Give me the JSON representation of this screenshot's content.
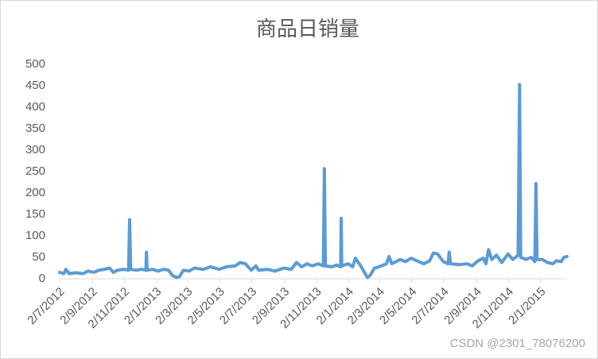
{
  "chart_data": {
    "type": "line",
    "title": "商品日销量",
    "x": [
      "2/7/2012",
      "10/7/2012",
      "14/7/2012",
      "20/7/2012",
      "1/8/2012",
      "15/8/2012",
      "25/8/2012",
      "5/9/2012",
      "15/9/2012",
      "25/9/2012",
      "5/10/2012",
      "12/10/2012",
      "20/10/2012",
      "1/11/2012",
      "10/11/2012",
      "12/11/2012",
      "14/11/2012",
      "25/11/2012",
      "5/12/2012",
      "13/12/2012",
      "14/12/2012",
      "15/12/2012",
      "25/12/2012",
      "5/1/2013",
      "15/1/2013",
      "25/1/2013",
      "1/2/2013",
      "9/2/2013",
      "15/2/2013",
      "22/2/2013",
      "5/3/2013",
      "15/3/2013",
      "1/4/2013",
      "15/4/2013",
      "1/5/2013",
      "15/5/2013",
      "1/6/2013",
      "10/6/2013",
      "20/6/2013",
      "1/7/2013",
      "10/7/2013",
      "15/7/2013",
      "1/8/2013",
      "15/8/2013",
      "1/9/2013",
      "15/9/2013",
      "25/9/2013",
      "5/10/2013",
      "15/10/2013",
      "25/10/2013",
      "5/11/2013",
      "15/11/2013",
      "17/11/2013",
      "19/11/2013",
      "1/12/2013",
      "10/12/2013",
      "18/12/2013",
      "19/12/2013",
      "20/12/2013",
      "1/1/2014",
      "10/1/2014",
      "15/1/2014",
      "25/1/2014",
      "1/2/2014",
      "7/2/2014",
      "12/2/2014",
      "20/2/2014",
      "1/3/2014",
      "15/3/2014",
      "20/3/2014",
      "25/3/2014",
      "10/4/2014",
      "20/4/2014",
      "1/5/2014",
      "15/5/2014",
      "25/5/2014",
      "5/6/2014",
      "12/6/2014",
      "20/6/2014",
      "1/7/2014",
      "10/7/2014",
      "12/7/2014",
      "15/7/2014",
      "1/8/2014",
      "15/8/2014",
      "25/8/2014",
      "5/9/2014",
      "15/9/2014",
      "20/9/2014",
      "25/9/2014",
      "1/10/2014",
      "10/10/2014",
      "20/10/2014",
      "1/11/2014",
      "10/11/2014",
      "20/11/2014",
      "23/11/2014",
      "25/11/2014",
      "5/12/2014",
      "15/12/2014",
      "22/12/2014",
      "24/12/2014",
      "26/12/2014",
      "5/1/2015",
      "15/1/2015",
      "25/1/2015",
      "1/2/2015",
      "10/2/2015",
      "15/2/2015",
      "21/2/2015"
    ],
    "series": [
      {
        "color": "#5b9bd5",
        "values": [
          15,
          12,
          22,
          12,
          14,
          12,
          18,
          15,
          20,
          22,
          25,
          15,
          20,
          22,
          20,
          138,
          22,
          20,
          22,
          20,
          62,
          20,
          22,
          18,
          22,
          20,
          8,
          3,
          5,
          20,
          18,
          25,
          22,
          28,
          22,
          28,
          30,
          38,
          35,
          20,
          30,
          20,
          22,
          18,
          25,
          22,
          38,
          28,
          35,
          30,
          35,
          30,
          257,
          30,
          28,
          32,
          28,
          141,
          30,
          35,
          28,
          48,
          30,
          15,
          3,
          8,
          25,
          28,
          35,
          52,
          35,
          45,
          40,
          48,
          40,
          35,
          42,
          60,
          58,
          40,
          35,
          62,
          35,
          33,
          35,
          30,
          42,
          48,
          35,
          68,
          45,
          55,
          38,
          58,
          45,
          55,
          453,
          50,
          45,
          50,
          40,
          222,
          45,
          45,
          38,
          35,
          42,
          40,
          50,
          52
        ]
      }
    ],
    "xlim": [
      "2/7/2012",
      "21/2/2015"
    ],
    "xticks": [
      "2/7/2012",
      "2/9/2012",
      "2/11/2012",
      "2/1/2013",
      "2/3/2013",
      "2/5/2013",
      "2/7/2013",
      "2/9/2013",
      "2/11/2013",
      "2/1/2014",
      "2/3/2014",
      "2/5/2014",
      "2/7/2014",
      "2/9/2014",
      "2/11/2014",
      "2/1/2015"
    ],
    "ylim": [
      0,
      500
    ],
    "yticks": [
      0,
      50,
      100,
      150,
      200,
      250,
      300,
      350,
      400,
      450,
      500
    ],
    "grid": false,
    "watermark": "CSDN @2301_78076200"
  }
}
